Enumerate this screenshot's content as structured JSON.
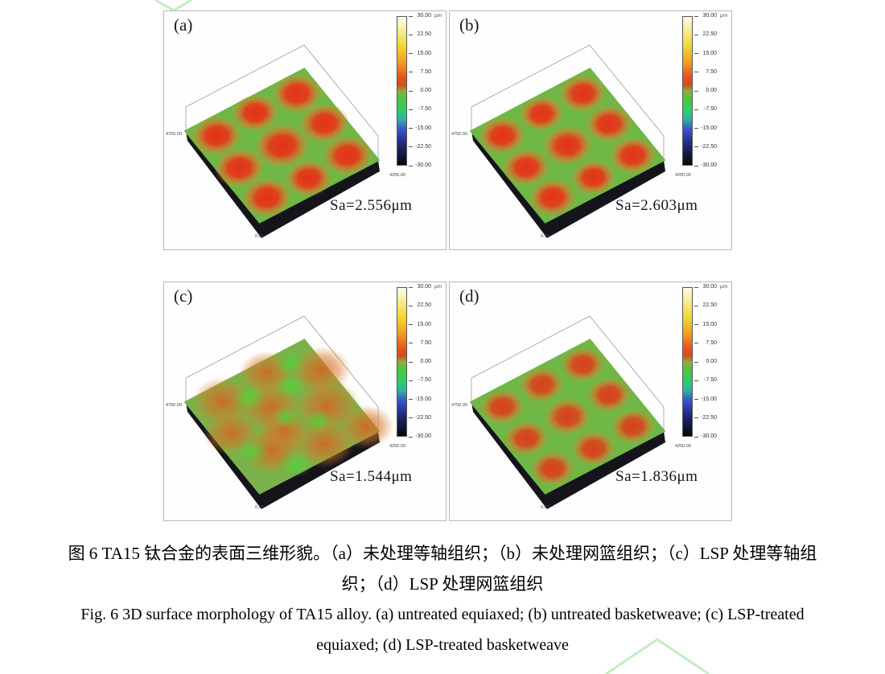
{
  "figure": {
    "panels": [
      {
        "label": "(a)",
        "sa": "Sa=2.556μm",
        "axis_left": "4750.00",
        "axis_right": "4250.00",
        "axis_bottom": "0.00"
      },
      {
        "label": "(b)",
        "sa": "Sa=2.603μm",
        "axis_left": "4750.00",
        "axis_right": "4250.00",
        "axis_bottom": "0.00"
      },
      {
        "label": "(c)",
        "sa": "Sa=1.544μm",
        "axis_left": "4750.00",
        "axis_right": "4250.00",
        "axis_bottom": "0.00"
      },
      {
        "label": "(d)",
        "sa": "Sa=1.836μm",
        "axis_left": "4750.00",
        "axis_right": "4250.00",
        "axis_bottom": "0.00"
      }
    ],
    "colorbar": {
      "unit": "μm",
      "ticks": [
        "30.00",
        "22.50",
        "15.00",
        "7.50",
        "0.00",
        "-7.50",
        "-15.00",
        "-22.50",
        "-30.00"
      ]
    },
    "captions": {
      "zh_line1": "图 6 TA15 钛合金的表面三维形貌。（a）未处理等轴组织；（b）未处理网篮组织；（c）LSP 处理等轴组",
      "zh_line2": "织；（d）LSP 处理网篮组织",
      "en_line1": "Fig. 6 3D surface morphology of TA15 alloy. (a) untreated equiaxed; (b) untreated basketweave; (c) LSP-treated",
      "en_line2": "equiaxed; (d) LSP-treated basketweave"
    },
    "colors": {
      "surface_green": "#6fb746",
      "blob_red": "#e43119",
      "watermark_green": "#c3ecc3",
      "slab_dark": "#14141a"
    }
  },
  "chart_data": {
    "type": "heatmap",
    "subtype": "3d-surface-height-map",
    "title_zh": "图 6 TA15 钛合金的表面三维形貌",
    "title_en": "Fig. 6 3D surface morphology of TA15 alloy",
    "z_axis": {
      "unit": "μm",
      "range": [
        -30,
        30
      ],
      "ticks": [
        30.0,
        22.5,
        15.0,
        7.5,
        0.0,
        -7.5,
        -15.0,
        -22.5,
        -30.0
      ]
    },
    "panels": [
      {
        "label": "(a)",
        "condition_en": "untreated equiaxed",
        "condition_zh": "未处理等轴组织",
        "Sa_um": 2.556,
        "pattern": "3x3 red high spots on green background"
      },
      {
        "label": "(b)",
        "condition_en": "untreated basketweave",
        "condition_zh": "未处理网篮组织",
        "Sa_um": 2.603,
        "pattern": "3x3 red high spots on green background"
      },
      {
        "label": "(c)",
        "condition_en": "LSP-treated equiaxed",
        "condition_zh": "LSP 处理等轴组织",
        "Sa_um": 1.544,
        "pattern": "diffuse orange/green mottling, flattened"
      },
      {
        "label": "(d)",
        "condition_en": "LSP-treated basketweave",
        "condition_zh": "LSP 处理网篮组织",
        "Sa_um": 1.836,
        "pattern": "3x3 muted red spots on green background"
      }
    ]
  }
}
